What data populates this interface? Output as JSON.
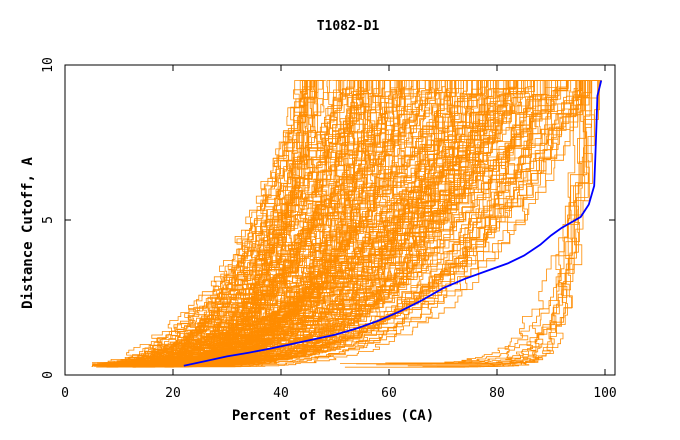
{
  "chart_data": {
    "type": "line",
    "title": "T1082-D1",
    "xlabel": "Percent of Residues (CA)",
    "ylabel": "Distance Cutoff, A",
    "xlim": [
      0,
      100
    ],
    "ylim": [
      0,
      10
    ],
    "x_ticks": [
      0,
      20,
      40,
      60,
      80,
      100
    ],
    "y_ticks": [
      0,
      5,
      10
    ],
    "grid": false,
    "legend": "none",
    "background_line_count": 220,
    "colors": {
      "background_lines": "#ff8c00",
      "highlight_line": "#0000ff",
      "axis": "#000000"
    },
    "highlight_series": {
      "x": [
        22,
        26,
        30,
        34,
        38,
        42,
        46,
        50,
        54,
        58,
        62,
        66,
        70,
        74,
        78,
        82,
        85,
        88,
        90,
        92,
        94,
        95.5,
        97,
        98,
        98.2,
        98.4,
        98.6,
        99.3
      ],
      "y": [
        0.3,
        0.45,
        0.6,
        0.72,
        0.85,
        1.0,
        1.15,
        1.3,
        1.5,
        1.75,
        2.05,
        2.4,
        2.8,
        3.1,
        3.35,
        3.6,
        3.85,
        4.2,
        4.5,
        4.75,
        4.95,
        5.1,
        5.5,
        6.1,
        7.0,
        8.0,
        9.0,
        9.5
      ]
    }
  }
}
